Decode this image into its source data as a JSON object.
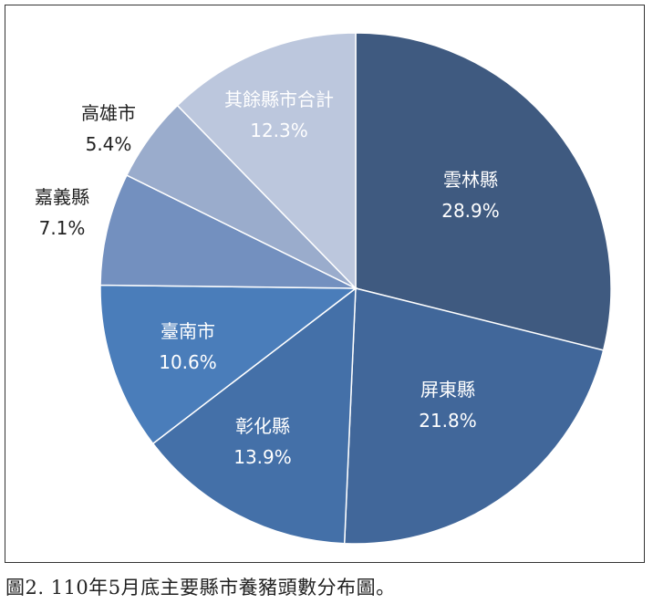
{
  "caption": "圖2. 110年5月底主要縣市養豬頭數分布圖。",
  "chart_data": {
    "type": "pie",
    "title": "",
    "start_angle_deg": 0,
    "direction": "clockwise",
    "slices": [
      {
        "label": "雲林縣",
        "value": 28.9,
        "value_text": "28.9%",
        "color": "#3f5a80",
        "text_color": "#ffffff"
      },
      {
        "label": "屏東縣",
        "value": 21.8,
        "value_text": "21.8%",
        "color": "#41679a",
        "text_color": "#ffffff"
      },
      {
        "label": "彰化縣",
        "value": 13.9,
        "value_text": "13.9%",
        "color": "#4470a8",
        "text_color": "#ffffff"
      },
      {
        "label": "臺南市",
        "value": 10.6,
        "value_text": "10.6%",
        "color": "#4a7dba",
        "text_color": "#ffffff"
      },
      {
        "label": "嘉義縣",
        "value": 7.1,
        "value_text": "7.1%",
        "color": "#7390bf",
        "text_color": "#222222"
      },
      {
        "label": "高雄市",
        "value": 5.4,
        "value_text": "5.4%",
        "color": "#9aaccc",
        "text_color": "#222222"
      },
      {
        "label": "其餘縣市合計",
        "value": 12.3,
        "value_text": "12.3%",
        "color": "#bcc7dd",
        "text_color": "#ffffff"
      }
    ]
  }
}
